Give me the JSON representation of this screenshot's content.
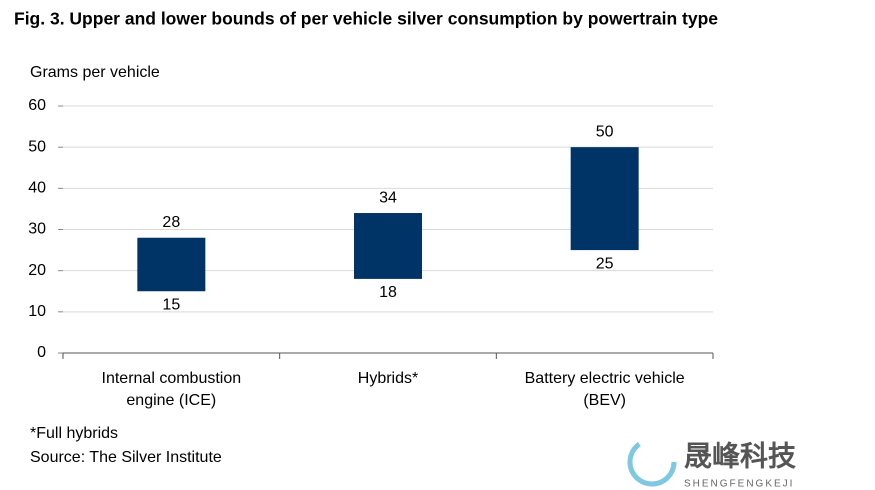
{
  "chart_data": {
    "type": "range_bar",
    "title": "Fig. 3. Upper and lower bounds of per vehicle silver consumption by powertrain type",
    "y_label": "Grams per vehicle",
    "categories": [
      "Internal combustion\nengine (ICE)",
      "Hybrids*",
      "Battery electric vehicle\n(BEV)"
    ],
    "low": [
      15,
      18,
      25
    ],
    "high": [
      28,
      34,
      50
    ],
    "color": "#003366",
    "ylim": [
      0,
      60
    ],
    "yticks": [
      0,
      10,
      20,
      30,
      40,
      50,
      60
    ],
    "grid": true,
    "footnote": "*Full hybrids",
    "source": "Source: The Silver Institute",
    "watermark": "晟峰科技",
    "watermark_sub": "SHENGFENGKEJI"
  }
}
